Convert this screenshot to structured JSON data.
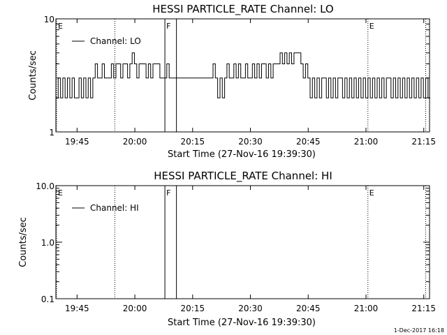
{
  "footer": {
    "date_stamp": "1-Dec-2017 16:18"
  },
  "chart_data": [
    {
      "type": "line",
      "title": "HESSI PARTICLE_RATE Channel: LO",
      "xlabel": "Start Time (27-Nov-16 19:39:30)",
      "ylabel": "Counts/sec",
      "yscale": "log",
      "ylim": [
        1,
        10
      ],
      "y_ticks": [
        1,
        10
      ],
      "y_tick_labels": [
        "1",
        "10"
      ],
      "xlim_minutes_after_start": [
        0,
        97
      ],
      "x_ticks_minutes_after_start": [
        5.5,
        20.5,
        35.5,
        50.5,
        65.5,
        80.5,
        95.5
      ],
      "x_tick_labels": [
        "19:45",
        "20:00",
        "20:15",
        "20:30",
        "20:45",
        "21:00",
        "21:15"
      ],
      "legend": {
        "label": "Channel: LO",
        "placement": "top-left"
      },
      "series": [
        {
          "name": "Channel: LO",
          "x": [
            0.0,
            0.6,
            1.2,
            1.8,
            2.4,
            3.0,
            3.6,
            4.2,
            4.8,
            5.4,
            6.0,
            6.6,
            7.2,
            7.8,
            8.4,
            9.0,
            9.6,
            10.2,
            10.8,
            11.4,
            12.0,
            12.6,
            13.2,
            13.8,
            14.4,
            15.0,
            15.6,
            16.2,
            16.8,
            17.4,
            18.0,
            18.6,
            19.2,
            19.8,
            20.4,
            21.0,
            21.6,
            22.2,
            22.8,
            23.4,
            24.0,
            24.6,
            25.2,
            25.8,
            26.4,
            27.0,
            27.6,
            28.2,
            28.8,
            29.4,
            30.0,
            30.6,
            31.2,
            31.8,
            32.4,
            33.0,
            33.6,
            34.2,
            34.8,
            35.4,
            36.0,
            36.6,
            37.2,
            37.8,
            38.4,
            39.0,
            39.6,
            40.2,
            40.8,
            41.4,
            42.0,
            42.6,
            43.2,
            43.8,
            44.4,
            45.0,
            45.6,
            46.2,
            46.8,
            47.4,
            48.0,
            48.6,
            49.2,
            49.8,
            50.4,
            51.0,
            51.6,
            52.2,
            52.8,
            53.4,
            54.0,
            54.6,
            55.2,
            55.8,
            56.4,
            57.0,
            57.6,
            58.2,
            58.8,
            59.4,
            60.0,
            60.6,
            61.2,
            61.8,
            62.4,
            63.0,
            63.6,
            64.2,
            64.8,
            65.4,
            66.0,
            66.6,
            67.2,
            67.8,
            68.4,
            69.0,
            69.6,
            70.2,
            70.8,
            71.4,
            72.0,
            72.6,
            73.2,
            73.8,
            74.4,
            75.0,
            75.6,
            76.2,
            76.8,
            77.4,
            78.0,
            78.6,
            79.2,
            79.8,
            80.4,
            81.0,
            81.6,
            82.2,
            82.8,
            83.4,
            84.0,
            84.6,
            85.2,
            85.8,
            86.4,
            87.0,
            87.6,
            88.2,
            88.8,
            89.4,
            90.0,
            90.6,
            91.2,
            91.8,
            92.4,
            93.0,
            93.6,
            94.2,
            94.8,
            95.4,
            96.0,
            96.6
          ],
          "y": [
            2,
            3,
            2,
            3,
            2,
            3,
            2,
            3,
            2,
            2,
            3,
            2,
            3,
            2,
            3,
            2,
            3,
            4,
            3,
            3,
            4,
            3,
            3,
            3,
            4,
            3,
            4,
            4,
            3,
            4,
            4,
            3,
            4,
            5,
            4,
            3,
            4,
            4,
            4,
            3,
            4,
            3,
            4,
            4,
            4,
            3,
            3,
            3,
            4,
            3,
            3,
            3,
            3,
            3,
            3,
            3,
            3,
            3,
            3,
            3,
            3,
            3,
            3,
            3,
            3,
            3,
            3,
            3,
            4,
            3,
            2,
            3,
            2,
            3,
            4,
            3,
            3,
            4,
            3,
            4,
            3,
            3,
            4,
            3,
            3,
            4,
            3,
            4,
            3,
            4,
            4,
            3,
            4,
            3,
            4,
            4,
            4,
            5,
            4,
            5,
            4,
            5,
            4,
            5,
            5,
            5,
            4,
            3,
            4,
            3,
            2,
            3,
            2,
            3,
            2,
            3,
            3,
            2,
            3,
            2,
            3,
            2,
            3,
            3,
            2,
            3,
            2,
            3,
            2,
            3,
            2,
            3,
            2,
            3,
            2,
            3,
            2,
            3,
            2,
            3,
            2,
            3,
            2,
            3,
            3,
            2,
            3,
            2,
            3,
            2,
            3,
            2,
            3,
            2,
            3,
            2,
            3,
            2,
            3,
            2,
            3,
            2
          ]
        }
      ],
      "markers": [
        {
          "label": "E",
          "minute": 0.0,
          "style": "dotted"
        },
        {
          "label": "",
          "minute": 15.3,
          "style": "dotted"
        },
        {
          "label": "F",
          "minute": 28.3,
          "style": "solid"
        },
        {
          "label": "",
          "minute": 31.3,
          "style": "solid"
        },
        {
          "label": "E",
          "minute": 81.0,
          "style": "dotted"
        },
        {
          "label": "",
          "minute": 96.0,
          "style": "dotted"
        }
      ]
    },
    {
      "type": "line",
      "title": "HESSI PARTICLE_RATE Channel: HI",
      "xlabel": "Start Time (27-Nov-16 19:39:30)",
      "ylabel": "Counts/sec",
      "yscale": "log",
      "ylim": [
        0.1,
        10
      ],
      "y_ticks": [
        0.1,
        1,
        10
      ],
      "y_tick_labels": [
        "0.1",
        "1.0",
        "10.0"
      ],
      "xlim_minutes_after_start": [
        0,
        97
      ],
      "x_ticks_minutes_after_start": [
        5.5,
        20.5,
        35.5,
        50.5,
        65.5,
        80.5,
        95.5
      ],
      "x_tick_labels": [
        "19:45",
        "20:00",
        "20:15",
        "20:30",
        "20:45",
        "21:00",
        "21:15"
      ],
      "legend": {
        "label": "Channel: HI",
        "placement": "top-left"
      },
      "series": [
        {
          "name": "Channel: HI",
          "x": [],
          "y": []
        }
      ],
      "markers": [
        {
          "label": "E",
          "minute": 0.0,
          "style": "dotted"
        },
        {
          "label": "",
          "minute": 15.3,
          "style": "dotted"
        },
        {
          "label": "F",
          "minute": 28.3,
          "style": "solid"
        },
        {
          "label": "",
          "minute": 31.3,
          "style": "solid"
        },
        {
          "label": "E",
          "minute": 81.0,
          "style": "dotted"
        },
        {
          "label": "",
          "minute": 96.0,
          "style": "dotted"
        }
      ]
    }
  ]
}
